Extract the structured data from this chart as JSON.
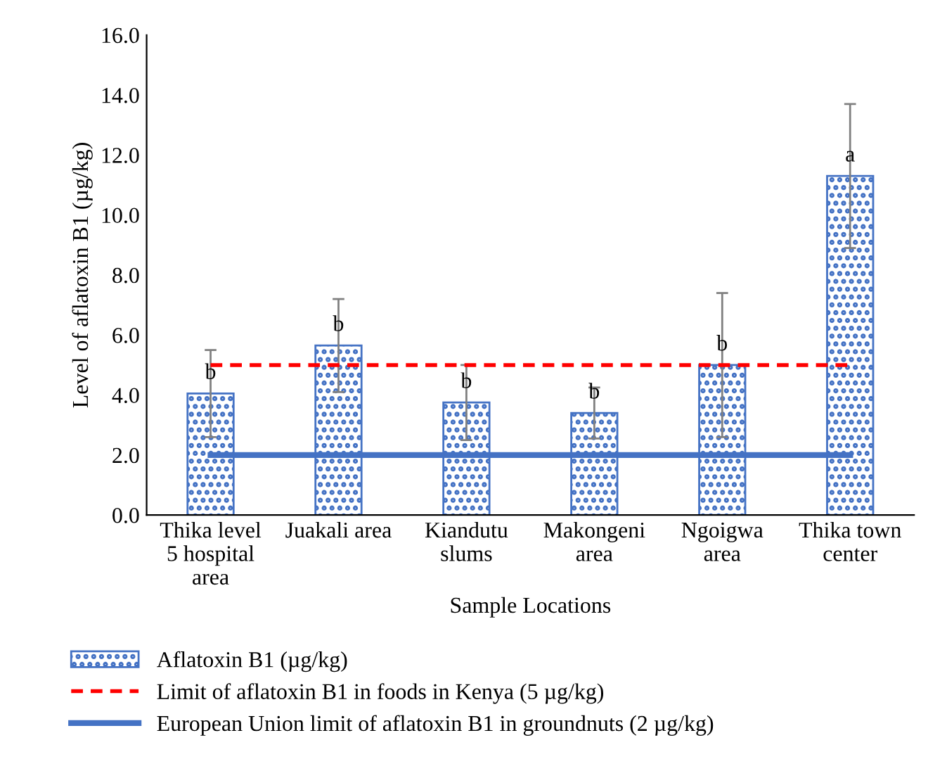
{
  "chart_data": {
    "type": "bar",
    "xlabel": "Sample Locations",
    "ylabel": "Level of aflatoxin B1 (µg/kg)",
    "categories": [
      "Thika level\n5 hospital\narea",
      "Juakali area",
      "Kiandutu\nslums",
      "Makongeni\narea",
      "Ngoigwa\narea",
      "Thika town\ncenter"
    ],
    "series": [
      {
        "name": "Aflatoxin B1 (µg/kg)",
        "color": "#4472c4",
        "values": [
          4.05,
          5.65,
          3.75,
          3.4,
          5.0,
          11.3
        ],
        "errors": [
          1.45,
          1.55,
          1.25,
          0.85,
          2.4,
          2.4
        ],
        "value_labels": [
          "b",
          "b",
          "b",
          "b",
          "b",
          "a"
        ]
      },
      {
        "name": "Limit of aflatoxin B1 in foods in Kenya (5 µg/kg)",
        "type": "line",
        "color": "#ff0000",
        "line_style": "dashed",
        "values": [
          5,
          5,
          5,
          5,
          5,
          5
        ]
      },
      {
        "name": "European Union limit of aflatoxin B1 in groundnuts (2 µg/kg)",
        "type": "line",
        "color": "#4472c4",
        "line_style": "solid",
        "values": [
          2,
          2,
          2,
          2,
          2,
          2
        ]
      }
    ],
    "ylim": [
      0,
      16
    ],
    "yticks": [
      {
        "value": 0,
        "label": "0.0"
      },
      {
        "value": 2,
        "label": "2.0"
      },
      {
        "value": 4,
        "label": "4.0"
      },
      {
        "value": 6,
        "label": "6.0"
      },
      {
        "value": 8,
        "label": "8.0"
      },
      {
        "value": 10,
        "label": "10.0"
      },
      {
        "value": 12,
        "label": "12.0"
      },
      {
        "value": 14,
        "label": "14.0"
      },
      {
        "value": 16,
        "label": "16.0"
      }
    ],
    "grid": false,
    "legend": "bottom"
  }
}
